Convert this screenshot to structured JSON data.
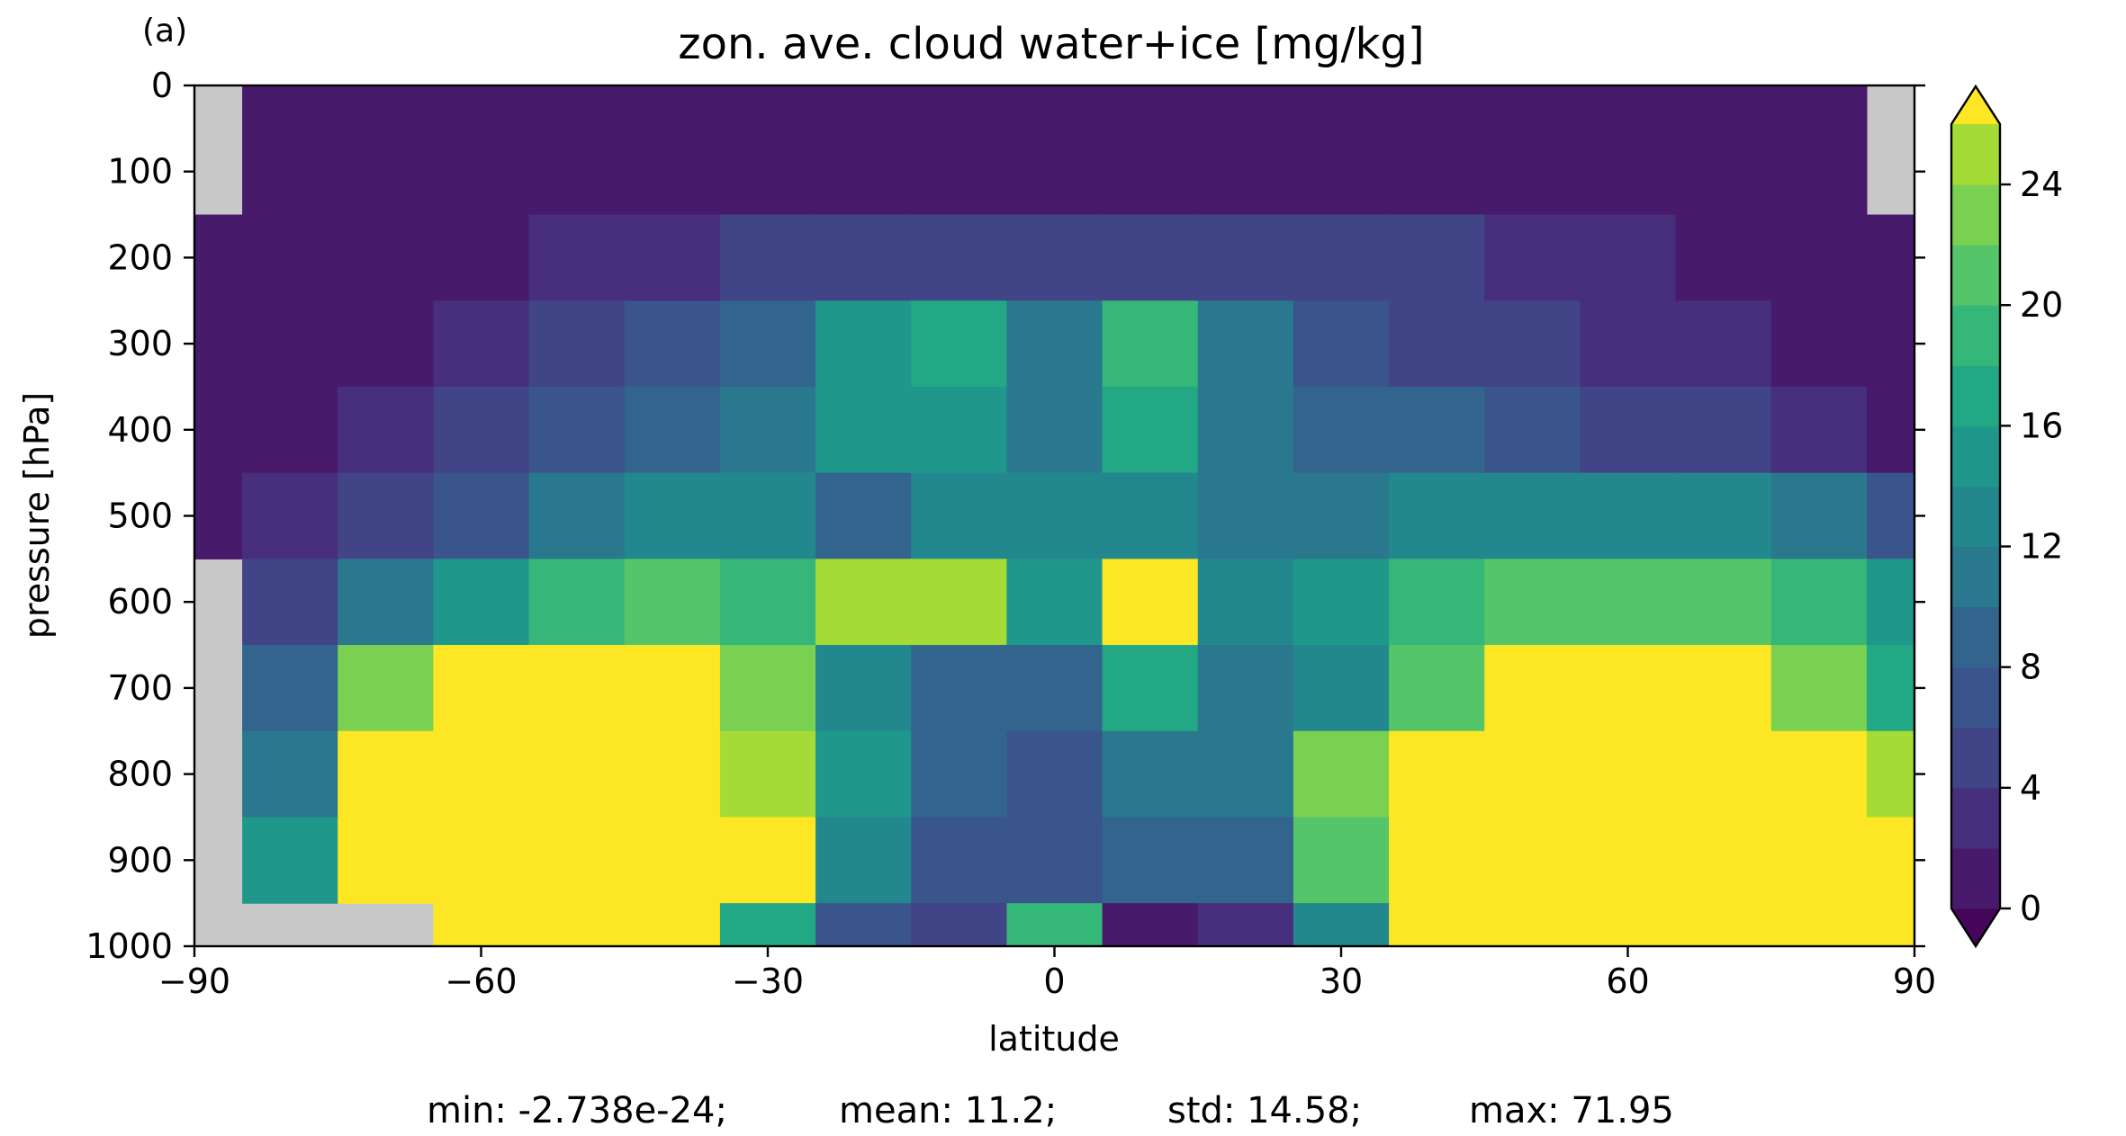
{
  "panel_label": "(a)",
  "chart_data": {
    "type": "heatmap",
    "title": "zon. ave. cloud water+ice [mg/kg]",
    "xlabel": "latitude",
    "ylabel": "pressure [hPa]",
    "xlim": [
      -90,
      90
    ],
    "ylim": [
      1000,
      0
    ],
    "y_inverted": true,
    "xticks": [
      -90,
      -60,
      -30,
      0,
      30,
      60,
      90
    ],
    "xtick_labels": [
      "−90",
      "−60",
      "−30",
      "0",
      "30",
      "60",
      "90"
    ],
    "yticks": [
      0,
      100,
      200,
      300,
      400,
      500,
      600,
      700,
      800,
      900,
      1000
    ],
    "ytick_labels": [
      "0",
      "100",
      "200",
      "300",
      "400",
      "500",
      "600",
      "700",
      "800",
      "900",
      "1000"
    ],
    "colorbar": {
      "levels": [
        0,
        2,
        4,
        6,
        8,
        10,
        12,
        14,
        16,
        18,
        20,
        22,
        24,
        26
      ],
      "tick_values": [
        0,
        4,
        8,
        12,
        16,
        20,
        24
      ],
      "tick_labels": [
        "0",
        "4",
        "8",
        "12",
        "16",
        "20",
        "24"
      ],
      "extend": "both",
      "colors": [
        "#450559",
        "#481a6c",
        "#472f7d",
        "#414487",
        "#3a548c",
        "#32648e",
        "#2a788e",
        "#23888e",
        "#1f988b",
        "#22a884",
        "#35b779",
        "#54c568",
        "#7ad151",
        "#a5db36",
        "#fde725"
      ],
      "missing_color": "#c8c8c8"
    },
    "grid": false,
    "latitudes": [
      -90,
      -80,
      -70,
      -60,
      -50,
      -40,
      -30,
      -20,
      -10,
      0,
      10,
      20,
      30,
      40,
      50,
      60,
      70,
      80,
      90
    ],
    "pressure_levels": [
      50,
      100,
      200,
      300,
      400,
      500,
      600,
      700,
      800,
      900,
      1000
    ],
    "values_mg_per_kg": [
      [
        null,
        1,
        1,
        1,
        0.5,
        0.5,
        0.5,
        1,
        1,
        0.5,
        1,
        1,
        0.5,
        1,
        1,
        1,
        1,
        1,
        null
      ],
      [
        null,
        1,
        1,
        1,
        1,
        1,
        1,
        1,
        1,
        1.5,
        1,
        1,
        1,
        1,
        1,
        1,
        1,
        1,
        null
      ],
      [
        1,
        1,
        1,
        1.5,
        2,
        3,
        4,
        5,
        5,
        5,
        5,
        5,
        4.5,
        4,
        3,
        2,
        1.5,
        1,
        1
      ],
      [
        1,
        1,
        1.5,
        2.5,
        4,
        6,
        9,
        14,
        17,
        11,
        19,
        11,
        6,
        5,
        4,
        3,
        2,
        1.5,
        1
      ],
      [
        1,
        1,
        2.5,
        4,
        6,
        9,
        11,
        14,
        15,
        10,
        16,
        10,
        9,
        8,
        6.5,
        5,
        4,
        3,
        1.5
      ],
      [
        1.5,
        2,
        4,
        7,
        10,
        13,
        12,
        9,
        12,
        12,
        13,
        10,
        10,
        12,
        13,
        13,
        12,
        10,
        6
      ],
      [
        null,
        4,
        10,
        14,
        18,
        20,
        18,
        25,
        24,
        14,
        27,
        13,
        15,
        18,
        20,
        20,
        20,
        18,
        14
      ],
      [
        null,
        8,
        22,
        27,
        28,
        27,
        22,
        12,
        8,
        8,
        16,
        10,
        12,
        20,
        28,
        28,
        26,
        22,
        16
      ],
      [
        null,
        10,
        27,
        30,
        32,
        30,
        24,
        14,
        8,
        6,
        10,
        10,
        22,
        30,
        36,
        38,
        34,
        28,
        24
      ],
      [
        null,
        14,
        30,
        40,
        46,
        44,
        26,
        12,
        6,
        6,
        8,
        8,
        20,
        40,
        56,
        62,
        58,
        50,
        42
      ],
      [
        null,
        null,
        null,
        56,
        48,
        32,
        16,
        6,
        4,
        18,
        1,
        2,
        12,
        40,
        66,
        72,
        68,
        62,
        55
      ]
    ]
  },
  "stats": {
    "min": "min: -2.738e-24;",
    "mean": "mean: 11.2;",
    "std": "std: 14.58;",
    "max": "max: 71.95"
  }
}
